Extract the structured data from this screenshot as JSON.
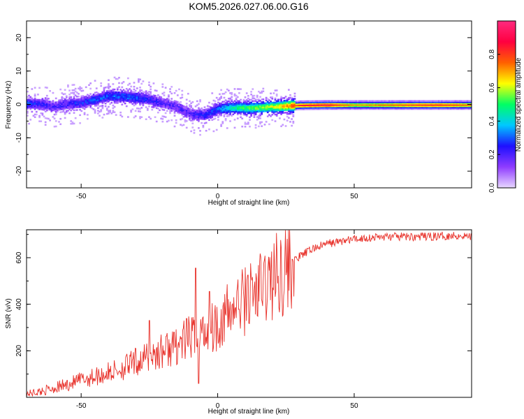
{
  "chart_data": [
    {
      "type": "heatmap",
      "title": "KOM5.2026.027.06.00.G16",
      "xlabel": "Height of straight line (km)",
      "ylabel": "Frequency (Hz)",
      "xlim": [
        -70,
        93
      ],
      "ylim": [
        -25,
        25
      ],
      "xticks": [
        "-50",
        "0",
        "50"
      ],
      "xtick_values": [
        -50,
        0,
        50
      ],
      "yticks": [
        "20",
        "10",
        "0",
        "-10",
        "-20"
      ],
      "ytick_values": [
        20,
        10,
        0,
        -10,
        -20
      ],
      "colorbar": {
        "label": "Normalized spectral amplitude",
        "ticks": [
          "0.0",
          "0.2",
          "0.4",
          "0.6",
          "0.8"
        ],
        "tick_values": [
          0.0,
          0.2,
          0.4,
          0.6,
          0.8
        ],
        "range": [
          0,
          1
        ],
        "colormap": [
          "#e8d7ff",
          "#8f3cff",
          "#1e10ff",
          "#00c8ff",
          "#00ff64",
          "#ffff00",
          "#ff6000",
          "#ff0040",
          "#ff2a7f"
        ]
      },
      "ridge": {
        "x": [
          -70,
          -65,
          -60,
          -55,
          -50,
          -45,
          -40,
          -35,
          -30,
          -25,
          -20,
          -15,
          -10,
          -5,
          0,
          5,
          10,
          15,
          20,
          25,
          30,
          40,
          50,
          60,
          70,
          80,
          93
        ],
        "y": [
          0.3,
          0.2,
          -0.6,
          0.2,
          0.5,
          1.6,
          2.6,
          2.4,
          2.1,
          1.4,
          0.4,
          -0.8,
          -2.8,
          -3.2,
          -1.3,
          -0.9,
          -1.0,
          -0.9,
          -0.6,
          -0.4,
          -0.2,
          -0.1,
          -0.1,
          -0.1,
          -0.1,
          -0.1,
          -0.1
        ],
        "amplitude": [
          0.28,
          0.22,
          0.2,
          0.22,
          0.25,
          0.28,
          0.3,
          0.3,
          0.28,
          0.24,
          0.2,
          0.18,
          0.2,
          0.24,
          0.3,
          0.45,
          0.5,
          0.55,
          0.6,
          0.7,
          0.85,
          0.9,
          0.7,
          0.75,
          0.8,
          0.85,
          0.75
        ]
      }
    },
    {
      "type": "line",
      "xlabel": "Height of straight line (km)",
      "ylabel": "SNR (v/v)",
      "xlim": [
        -70,
        93
      ],
      "ylim": [
        0,
        720
      ],
      "xticks": [
        "-50",
        "0",
        "50"
      ],
      "xtick_values": [
        -50,
        0,
        50
      ],
      "yticks": [
        "600",
        "400",
        "200"
      ],
      "ytick_values": [
        600,
        400,
        200
      ],
      "color": "#e8312a",
      "series": [
        {
          "name": "SNR",
          "x": [
            -70,
            -65,
            -60,
            -55,
            -50,
            -45,
            -40,
            -35,
            -30,
            -25,
            -20,
            -15,
            -10,
            -5,
            0,
            5,
            10,
            15,
            20,
            25,
            30,
            35,
            40,
            45,
            50,
            55,
            60,
            65,
            70,
            75,
            80,
            85,
            90,
            93
          ],
          "y": [
            15,
            25,
            40,
            55,
            75,
            90,
            105,
            125,
            150,
            175,
            200,
            225,
            255,
            280,
            320,
            370,
            420,
            460,
            510,
            560,
            605,
            640,
            660,
            670,
            680,
            685,
            690,
            690,
            690,
            690,
            692,
            695,
            695,
            690
          ]
        }
      ],
      "spikes": [
        {
          "x": -25,
          "y": 330
        },
        {
          "x": -16,
          "y": 280
        },
        {
          "x": -8,
          "y": 555
        },
        {
          "x": -7,
          "y": 60
        },
        {
          "x": -3,
          "y": 455
        },
        {
          "x": 11,
          "y": 525
        }
      ]
    }
  ]
}
